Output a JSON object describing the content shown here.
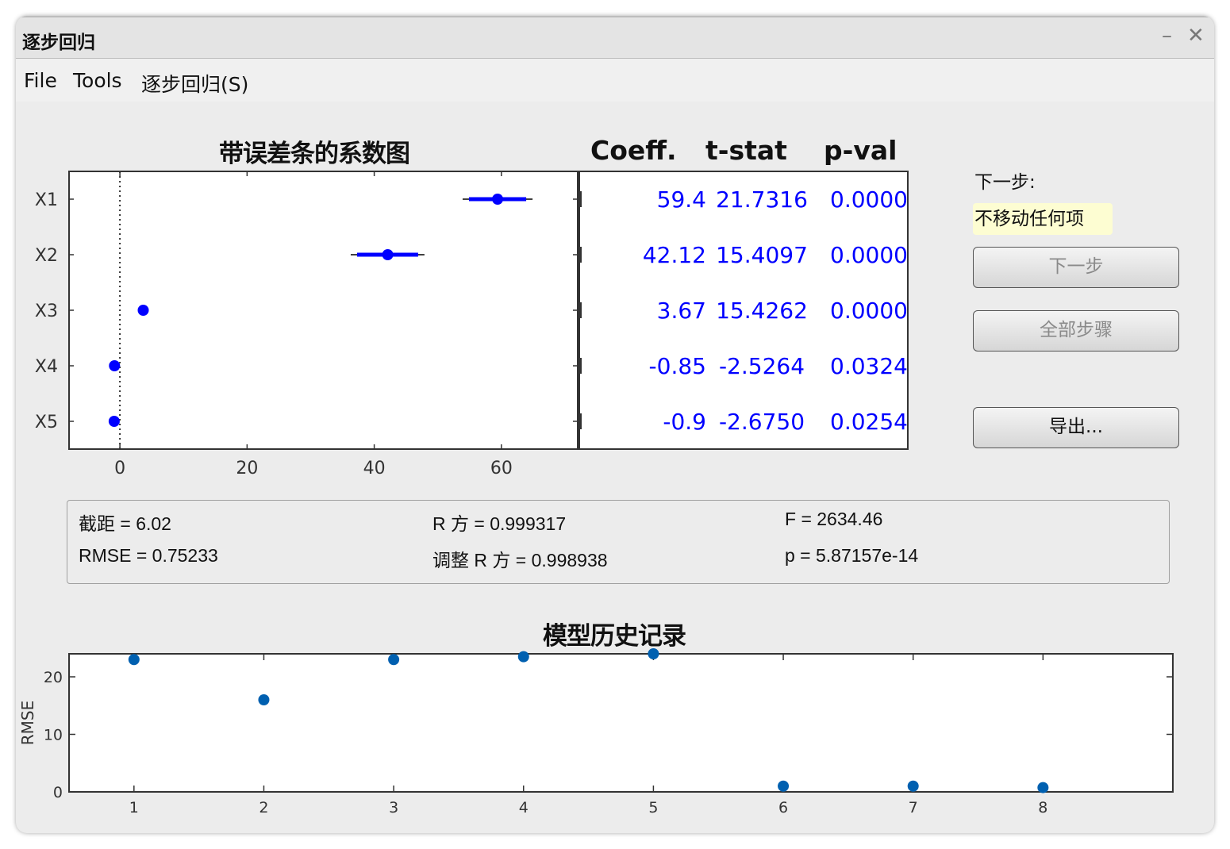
{
  "window": {
    "title": "逐步回归",
    "minimize_label": "–",
    "close_label": "✕"
  },
  "menu": [
    "File",
    "Tools",
    "逐步回归(S)"
  ],
  "coef_plot": {
    "title": "带误差条的系数图",
    "terms": [
      "X1",
      "X2",
      "X3",
      "X4",
      "X5"
    ],
    "x_ticks": [
      "0",
      "20",
      "40",
      "60"
    ],
    "xlim": [
      -8,
      72
    ],
    "points": [
      {
        "term": "X1",
        "estimate": 59.4,
        "ci90": [
          54.9,
          63.9
        ],
        "ci95": [
          53.9,
          64.9
        ],
        "color": "#0000ff"
      },
      {
        "term": "X2",
        "estimate": 42.12,
        "ci90": [
          37.3,
          46.9
        ],
        "ci95": [
          36.3,
          47.9
        ],
        "color": "#0000ff"
      },
      {
        "term": "X3",
        "estimate": 3.67,
        "color": "#0000ff"
      },
      {
        "term": "X4",
        "estimate": -0.85,
        "color": "#0000ff"
      },
      {
        "term": "X5",
        "estimate": -0.9,
        "color": "#0000ff"
      }
    ]
  },
  "coef_table": {
    "headers": {
      "coeff": "Coeff.",
      "tstat": "t-stat",
      "pval": "p-val"
    },
    "rows": [
      {
        "coeff": "59.4",
        "tstat": "21.7316",
        "pval": "0.0000"
      },
      {
        "coeff": "42.12",
        "tstat": "15.4097",
        "pval": "0.0000"
      },
      {
        "coeff": "3.67",
        "tstat": "15.4262",
        "pval": "0.0000"
      },
      {
        "coeff": "-0.85",
        "tstat": "-2.5264",
        "pval": "0.0324"
      },
      {
        "coeff": "-0.9",
        "tstat": "-2.6750",
        "pval": "0.0254"
      }
    ],
    "text_color": "#0000ff"
  },
  "side_panel": {
    "next_step_label": "下一步:",
    "next_step_value": "不移动任何项",
    "next_button": "下一步",
    "all_steps_button": "全部步骤",
    "export_button": "导出..."
  },
  "stats": {
    "intercept": "截距 = 6.02",
    "rsq": "R 方 = 0.999317",
    "f": "F = 2634.46",
    "rmse": "RMSE = 0.75233",
    "adj_rsq": "调整 R 方 = 0.998938",
    "p": "p = 5.87157e-14"
  },
  "chart_data": {
    "type": "scatter",
    "title": "模型历史记录",
    "xlabel": "",
    "ylabel": "RMSE",
    "x": [
      1,
      2,
      3,
      4,
      5,
      6,
      7,
      8
    ],
    "values": [
      23,
      16,
      23,
      23.5,
      24,
      1,
      1,
      0.75
    ],
    "x_ticks": [
      "1",
      "2",
      "3",
      "4",
      "5",
      "6",
      "7",
      "8"
    ],
    "y_ticks": [
      "0",
      "10",
      "20"
    ],
    "xlim": [
      0.5,
      9
    ],
    "ylim": [
      0,
      24
    ],
    "grid": false,
    "color": "#0060b0"
  }
}
